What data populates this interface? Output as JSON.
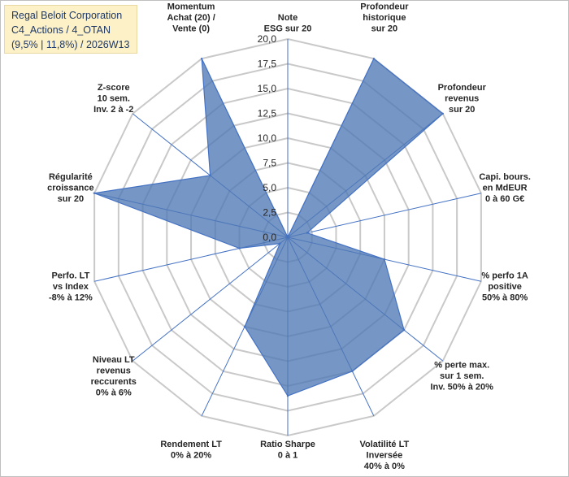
{
  "title_box": {
    "line1": "Regal Beloit Corporation",
    "line2": "C4_Actions / 4_OTAN",
    "line3": "(9,5% | 11,8%) / 2026W13"
  },
  "chart_data": {
    "type": "radar",
    "rmin": 0,
    "rmax": 20,
    "ticks": [
      "0,0",
      "2,5",
      "5,0",
      "7,5",
      "10,0",
      "12,5",
      "15,0",
      "17,5",
      "20,0"
    ],
    "tick_values": [
      0,
      2.5,
      5,
      7.5,
      10,
      12.5,
      15,
      17.5,
      20
    ],
    "grid_color": "#c9c9c9",
    "spoke_color": "#4472c4",
    "fill_color": "#4f79b5",
    "axes": [
      {
        "label": [
          "Note",
          "ESG sur 20"
        ],
        "value": 0
      },
      {
        "label": [
          "Profondeur",
          "historique",
          "sur 20"
        ],
        "value": 20
      },
      {
        "label": [
          "Profondeur",
          "revenus",
          "sur 20"
        ],
        "value": 20
      },
      {
        "label": [
          "Capi. bours.",
          "en MdEUR",
          "0 à 60 G€"
        ],
        "value": 2
      },
      {
        "label": [
          "% perfo 1A",
          "positive",
          "50% à 80%"
        ],
        "value": 10
      },
      {
        "label": [
          "% perte max.",
          "sur 1 sem.",
          "Inv. 50% à 20%"
        ],
        "value": 15
      },
      {
        "label": [
          "Volatilité LT",
          "Inversée",
          "40% à 0%"
        ],
        "value": 15
      },
      {
        "label": [
          "Ratio Sharpe",
          "0 à 1"
        ],
        "value": 16
      },
      {
        "label": [
          "Rendement LT",
          "0% à 20%"
        ],
        "value": 10
      },
      {
        "label": [
          "Niveau LT",
          "revenus",
          "reccurents",
          "0% à 6%"
        ],
        "value": 1
      },
      {
        "label": [
          "Perfo. LT",
          "vs Index",
          "-8% à 12%"
        ],
        "value": 5
      },
      {
        "label": [
          "Régularité",
          "croissance",
          "sur 20"
        ],
        "value": 20
      },
      {
        "label": [
          "Z-score",
          "10 sem.",
          "Inv. 2 à -2"
        ],
        "value": 10
      },
      {
        "label": [
          "Momentum",
          "Achat (20) /",
          "Vente (0)"
        ],
        "value": 20
      }
    ]
  }
}
